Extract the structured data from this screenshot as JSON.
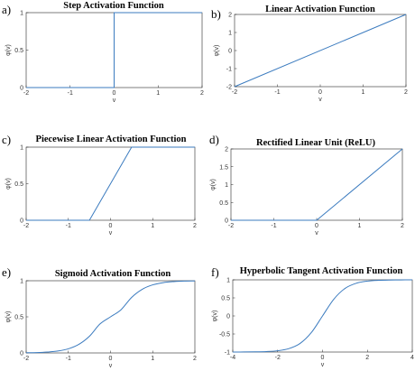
{
  "colors": {
    "line": "#3b7bbf",
    "axis": "#262626"
  },
  "chart_data": [
    {
      "label": "a)",
      "type": "line",
      "title": "Step Activation Function",
      "xlabel": "v",
      "ylabel": "φ(v)",
      "xlim": [
        -2,
        2
      ],
      "ylim": [
        0,
        1
      ],
      "xticks": [
        -2,
        -1,
        0,
        1,
        2
      ],
      "yticks": [
        0,
        0.5,
        1
      ],
      "series": [
        {
          "x": [
            -2,
            0,
            0,
            2
          ],
          "y": [
            0,
            0,
            1,
            1
          ]
        }
      ]
    },
    {
      "label": "b)",
      "type": "line",
      "title": "Linear Activation Function",
      "xlabel": "v",
      "ylabel": "φ(v)",
      "xlim": [
        -2,
        2
      ],
      "ylim": [
        -2,
        2
      ],
      "xticks": [
        -2,
        -1,
        0,
        1,
        2
      ],
      "yticks": [
        -2,
        -1,
        0,
        1,
        2
      ],
      "series": [
        {
          "x": [
            -2,
            2
          ],
          "y": [
            -2,
            2
          ]
        }
      ]
    },
    {
      "label": "c)",
      "type": "line",
      "title": "Piecewise Linear Activation Function",
      "xlabel": "v",
      "ylabel": "φ(v)",
      "xlim": [
        -2,
        2
      ],
      "ylim": [
        0,
        1
      ],
      "xticks": [
        -2,
        -1,
        0,
        1,
        2
      ],
      "yticks": [
        0,
        0.5,
        1
      ],
      "series": [
        {
          "x": [
            -2,
            -0.5,
            0.5,
            2
          ],
          "y": [
            0,
            0,
            1,
            1
          ]
        }
      ]
    },
    {
      "label": "d)",
      "type": "line",
      "title": "Rectified Linear Unit (ReLU)",
      "xlabel": "v",
      "ylabel": "φ(v)",
      "xlim": [
        -2,
        2
      ],
      "ylim": [
        0,
        2
      ],
      "xticks": [
        -2,
        -1,
        0,
        1,
        2
      ],
      "yticks": [
        0,
        0.5,
        1,
        1.5,
        2
      ],
      "series": [
        {
          "x": [
            -2,
            0,
            2
          ],
          "y": [
            0,
            0,
            2
          ]
        }
      ]
    },
    {
      "label": "e)",
      "type": "line",
      "title": "Sigmoid Activation Function",
      "xlabel": "v",
      "ylabel": "φ(v)",
      "xlim": [
        -2,
        2
      ],
      "ylim": [
        0,
        1
      ],
      "xticks": [
        -2,
        -1,
        0,
        1,
        2
      ],
      "yticks": [
        0,
        0.5,
        1
      ],
      "series": [
        {
          "x": [
            -2,
            -1.75,
            -1.5,
            -1.25,
            -1,
            -0.75,
            -0.5,
            -0.25,
            0,
            0.25,
            0.5,
            0.75,
            1,
            1.25,
            1.5,
            1.75,
            2
          ],
          "y": [
            0.003,
            0.005,
            0.012,
            0.026,
            0.057,
            0.119,
            0.231,
            0.401,
            0.5,
            0.599,
            0.769,
            0.881,
            0.943,
            0.974,
            0.988,
            0.995,
            0.997
          ]
        }
      ]
    },
    {
      "label": "f)",
      "type": "line",
      "title": "Hyperbolic Tangent Activation Function",
      "xlabel": "v",
      "ylabel": "φ(v)",
      "xlim": [
        -4,
        4
      ],
      "ylim": [
        -1,
        1
      ],
      "xticks": [
        -4,
        -2,
        0,
        2,
        4
      ],
      "yticks": [
        -1,
        -0.5,
        0,
        0.5,
        1
      ],
      "series": [
        {
          "x": [
            -4,
            -3.5,
            -3,
            -2.5,
            -2,
            -1.5,
            -1,
            -0.5,
            0,
            0.5,
            1,
            1.5,
            2,
            2.5,
            3,
            3.5,
            4
          ],
          "y": [
            -0.9993,
            -0.9982,
            -0.9951,
            -0.9866,
            -0.964,
            -0.9051,
            -0.7616,
            -0.4621,
            0,
            0.4621,
            0.7616,
            0.9051,
            0.964,
            0.9866,
            0.9951,
            0.9982,
            0.9993
          ]
        }
      ]
    }
  ]
}
